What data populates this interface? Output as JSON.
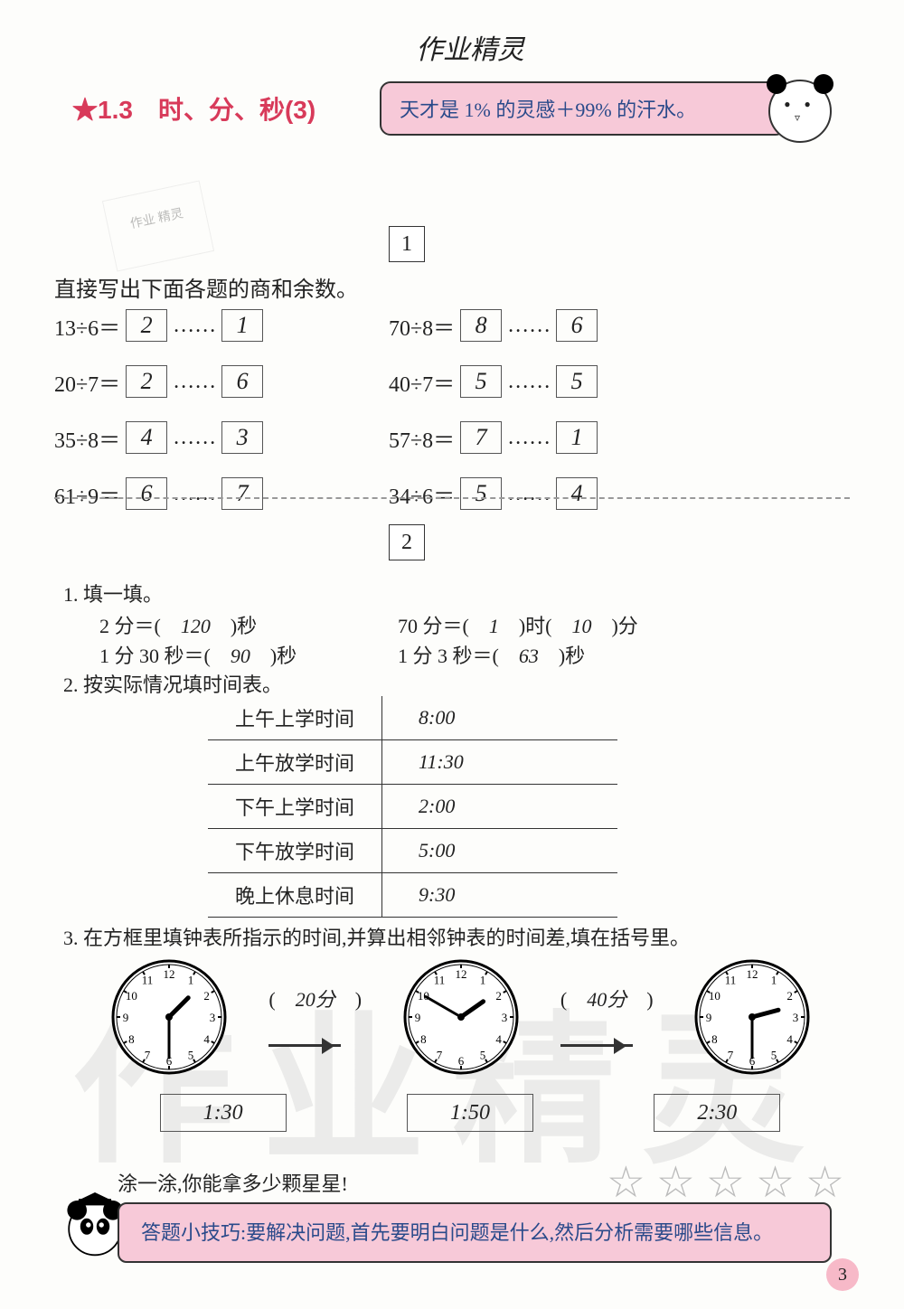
{
  "header": {
    "title": "作业精灵"
  },
  "section": {
    "star": "★",
    "number": "1.3",
    "title": "时、分、秒(3)"
  },
  "quote": {
    "text": "天才是 1% 的灵感＋99% 的汗水。"
  },
  "watermark_stamp": "作业\n精灵",
  "box1": {
    "number": "1",
    "instruction": "直接写出下面各题的商和余数。"
  },
  "divisions": {
    "left": [
      {
        "expr": "13÷6＝",
        "q": "2",
        "r": "1"
      },
      {
        "expr": "20÷7＝",
        "q": "2",
        "r": "6"
      },
      {
        "expr": "35÷8＝",
        "q": "4",
        "r": "3"
      },
      {
        "expr": "61÷9＝",
        "q": "6",
        "r": "7"
      }
    ],
    "right": [
      {
        "expr": "70÷8＝",
        "q": "8",
        "r": "6"
      },
      {
        "expr": "40÷7＝",
        "q": "5",
        "r": "5"
      },
      {
        "expr": "57÷8＝",
        "q": "7",
        "r": "1"
      },
      {
        "expr": "34÷6＝",
        "q": "5",
        "r": "4"
      }
    ],
    "dots": "……"
  },
  "box2": {
    "number": "2"
  },
  "q1": {
    "label": "1. 填一填。",
    "row1_left_pre": "2 分＝(　",
    "row1_left_ans": "120",
    "row1_left_post": "　)秒",
    "row1_right_pre": "70 分＝(　",
    "row1_right_ans1": "1",
    "row1_right_mid": "　)时(　",
    "row1_right_ans2": "10",
    "row1_right_post": "　)分",
    "row2_left_pre": "1 分 30 秒＝(　",
    "row2_left_ans": "90",
    "row2_left_post": "　)秒",
    "row2_right_pre": "1 分 3 秒＝(　",
    "row2_right_ans": "63",
    "row2_right_post": "　)秒"
  },
  "q2": {
    "label": "2. 按实际情况填时间表。",
    "rows": [
      {
        "label": "上午上学时间",
        "value": "8:00"
      },
      {
        "label": "上午放学时间",
        "value": "11:30"
      },
      {
        "label": "下午上学时间",
        "value": "2:00"
      },
      {
        "label": "下午放学时间",
        "value": "5:00"
      },
      {
        "label": "晚上休息时间",
        "value": "9:30"
      }
    ]
  },
  "q3": {
    "label": "3. 在方框里填钟表所指示的时间,并算出相邻钟表的时间差,填在括号里。",
    "clocks": [
      {
        "hour_angle": 45,
        "min_angle": 180,
        "time": "1:30"
      },
      {
        "hour_angle": 55,
        "min_angle": 300,
        "time": "1:50"
      },
      {
        "hour_angle": 75,
        "min_angle": 180,
        "time": "2:30"
      }
    ],
    "diffs": [
      {
        "pre": "(　",
        "val": "20分",
        "post": "　)"
      },
      {
        "pre": "(　",
        "val": "40分",
        "post": "　)"
      }
    ]
  },
  "stars": {
    "text": "涂一涂,你能拿多少颗星星!",
    "count": 5,
    "glyph": "☆"
  },
  "tip": {
    "text": "答题小技巧:要解决问题,首先要明白问题是什么,然后分析需要哪些信息。"
  },
  "page_number": "3",
  "big_watermark": "作业精灵",
  "colors": {
    "accent": "#d83a5a",
    "pink_bg": "#f7c9d8",
    "blue_text": "#2a4a8a"
  }
}
